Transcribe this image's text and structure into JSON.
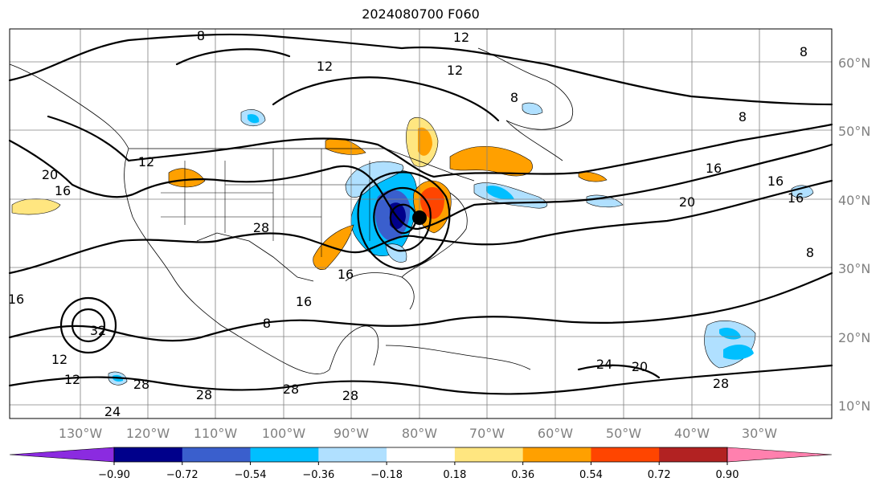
{
  "title": "2024080700 F060",
  "map": {
    "lon_range": [
      -135,
      -15
    ],
    "lat_range": [
      7,
      65
    ],
    "lat_labels": [
      "60°N",
      "50°N",
      "40°N",
      "30°N",
      "20°N",
      "10°N"
    ],
    "lon_labels": [
      "130°W",
      "120°W",
      "110°W",
      "100°W",
      "90°W",
      "80°W",
      "70°W",
      "60°W",
      "50°W",
      "40°W",
      "30°W"
    ]
  },
  "contour_labels": [
    "8",
    "12",
    "12",
    "8",
    "8",
    "8",
    "12",
    "20",
    "16",
    "16",
    "16",
    "16",
    "20",
    "12",
    "8",
    "28",
    "16",
    "16",
    "32",
    "28",
    "8",
    "24",
    "20",
    "28",
    "28",
    "28",
    "28",
    "24",
    "16",
    "12",
    "12"
  ],
  "colorbar": {
    "ticks": [
      "−0.90",
      "−0.72",
      "−0.54",
      "−0.36",
      "−0.18",
      "0.18",
      "0.36",
      "0.54",
      "0.72",
      "0.90"
    ],
    "under_color": "#9b30d0",
    "over_color": "#ff7fae",
    "colors": [
      "#8b2be0",
      "#00008b",
      "#3a5fcd",
      "#00bfff",
      "#b0e0ff",
      "#ffffff",
      "#ffe680",
      "#ffa000",
      "#ff4500",
      "#b22222",
      "#ff80ae"
    ]
  }
}
